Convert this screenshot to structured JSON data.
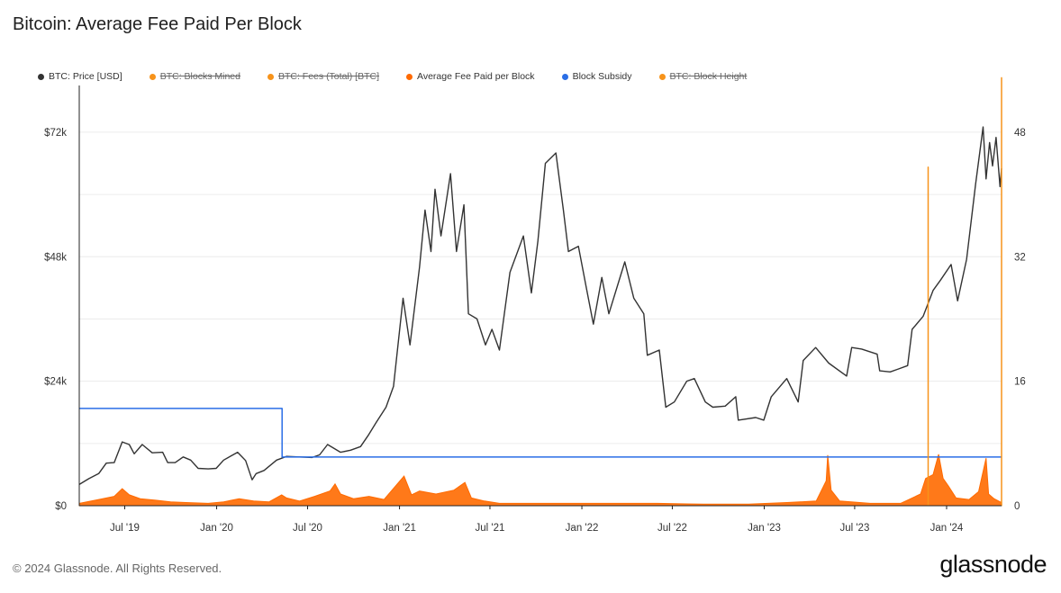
{
  "title": "Bitcoin: Average Fee Paid Per Block",
  "footer": {
    "copyright": "© 2024 Glassnode. All Rights Reserved.",
    "brand": "glassnode"
  },
  "legend": [
    {
      "label": "BTC: Price [USD]",
      "color": "#333333",
      "struck": false
    },
    {
      "label": "BTC: Blocks Mined",
      "color": "#f7931a",
      "struck": true
    },
    {
      "label": "BTC: Fees (Total) [BTC]",
      "color": "#f7931a",
      "struck": true
    },
    {
      "label": "Average Fee Paid per Block",
      "color": "#ff6a00",
      "struck": false
    },
    {
      "label": "Block Subsidy",
      "color": "#2a6ee6",
      "struck": false
    },
    {
      "label": "BTC: Block Height",
      "color": "#f7931a",
      "struck": true
    }
  ],
  "chart_data": {
    "type": "line",
    "x_range": [
      "2019-04-01",
      "2024-04-20"
    ],
    "left_axis": {
      "label": "",
      "ticks": [
        0,
        24000,
        48000,
        72000
      ],
      "tick_labels": [
        "$0",
        "$24k",
        "$48k",
        "$72k"
      ],
      "range": [
        0,
        81000
      ]
    },
    "right_axis": {
      "label": "",
      "ticks": [
        0,
        16,
        32,
        48
      ],
      "tick_labels": [
        "0",
        "16",
        "32",
        "48"
      ],
      "range": [
        0,
        54
      ]
    },
    "x_ticks": [
      {
        "date": "2019-07-01",
        "label": "Jul '19"
      },
      {
        "date": "2020-01-01",
        "label": "Jan '20"
      },
      {
        "date": "2020-07-01",
        "label": "Jul '20"
      },
      {
        "date": "2021-01-01",
        "label": "Jan '21"
      },
      {
        "date": "2021-07-01",
        "label": "Jul '21"
      },
      {
        "date": "2022-01-01",
        "label": "Jan '22"
      },
      {
        "date": "2022-07-01",
        "label": "Jul '22"
      },
      {
        "date": "2023-01-01",
        "label": "Jan '23"
      },
      {
        "date": "2023-07-01",
        "label": "Jul '23"
      },
      {
        "date": "2024-01-01",
        "label": "Jan '24"
      }
    ],
    "grid": true,
    "legend_position": "top-left",
    "series": [
      {
        "name": "BTC: Price [USD]",
        "axis": "left",
        "color": "#333333",
        "points": [
          [
            "2019-04-01",
            4100
          ],
          [
            "2019-04-20",
            5200
          ],
          [
            "2019-05-10",
            6200
          ],
          [
            "2019-05-25",
            8200
          ],
          [
            "2019-06-10",
            8300
          ],
          [
            "2019-06-26",
            12300
          ],
          [
            "2019-07-10",
            11800
          ],
          [
            "2019-07-20",
            10000
          ],
          [
            "2019-08-05",
            11800
          ],
          [
            "2019-08-25",
            10200
          ],
          [
            "2019-09-15",
            10300
          ],
          [
            "2019-09-25",
            8300
          ],
          [
            "2019-10-10",
            8300
          ],
          [
            "2019-10-26",
            9400
          ],
          [
            "2019-11-10",
            8800
          ],
          [
            "2019-11-25",
            7200
          ],
          [
            "2019-12-15",
            7100
          ],
          [
            "2019-12-31",
            7200
          ],
          [
            "2020-01-15",
            8800
          ],
          [
            "2020-02-12",
            10300
          ],
          [
            "2020-02-28",
            8700
          ],
          [
            "2020-03-12",
            5000
          ],
          [
            "2020-03-20",
            6200
          ],
          [
            "2020-04-05",
            6800
          ],
          [
            "2020-04-30",
            8800
          ],
          [
            "2020-05-20",
            9500
          ],
          [
            "2020-06-15",
            9400
          ],
          [
            "2020-07-10",
            9300
          ],
          [
            "2020-07-25",
            9800
          ],
          [
            "2020-08-10",
            11800
          ],
          [
            "2020-09-05",
            10300
          ],
          [
            "2020-09-25",
            10700
          ],
          [
            "2020-10-15",
            11400
          ],
          [
            "2020-10-30",
            13500
          ],
          [
            "2020-11-15",
            16000
          ],
          [
            "2020-12-05",
            19000
          ],
          [
            "2020-12-20",
            23000
          ],
          [
            "2021-01-08",
            40000
          ],
          [
            "2021-01-22",
            31000
          ],
          [
            "2021-02-10",
            46000
          ],
          [
            "2021-02-21",
            57000
          ],
          [
            "2021-03-05",
            49000
          ],
          [
            "2021-03-13",
            61000
          ],
          [
            "2021-03-25",
            52000
          ],
          [
            "2021-04-13",
            64000
          ],
          [
            "2021-04-25",
            49000
          ],
          [
            "2021-05-10",
            58000
          ],
          [
            "2021-05-19",
            37000
          ],
          [
            "2021-06-05",
            36000
          ],
          [
            "2021-06-22",
            31000
          ],
          [
            "2021-07-05",
            34000
          ],
          [
            "2021-07-20",
            30000
          ],
          [
            "2021-08-10",
            45000
          ],
          [
            "2021-09-06",
            52000
          ],
          [
            "2021-09-22",
            41000
          ],
          [
            "2021-10-05",
            51000
          ],
          [
            "2021-10-20",
            66000
          ],
          [
            "2021-11-10",
            68000
          ],
          [
            "2021-11-25",
            57000
          ],
          [
            "2021-12-05",
            49000
          ],
          [
            "2021-12-25",
            50000
          ],
          [
            "2022-01-10",
            42000
          ],
          [
            "2022-01-24",
            35000
          ],
          [
            "2022-02-10",
            44000
          ],
          [
            "2022-02-24",
            37000
          ],
          [
            "2022-03-28",
            47000
          ],
          [
            "2022-04-15",
            40000
          ],
          [
            "2022-05-05",
            37000
          ],
          [
            "2022-05-12",
            29000
          ],
          [
            "2022-06-05",
            30000
          ],
          [
            "2022-06-18",
            19000
          ],
          [
            "2022-07-05",
            20000
          ],
          [
            "2022-07-30",
            24000
          ],
          [
            "2022-08-14",
            24500
          ],
          [
            "2022-09-05",
            20000
          ],
          [
            "2022-09-20",
            19000
          ],
          [
            "2022-10-15",
            19200
          ],
          [
            "2022-11-05",
            21000
          ],
          [
            "2022-11-10",
            16500
          ],
          [
            "2022-12-15",
            17000
          ],
          [
            "2022-12-31",
            16500
          ],
          [
            "2023-01-15",
            21000
          ],
          [
            "2023-02-15",
            24500
          ],
          [
            "2023-03-10",
            20000
          ],
          [
            "2023-03-20",
            28000
          ],
          [
            "2023-04-14",
            30500
          ],
          [
            "2023-05-10",
            27500
          ],
          [
            "2023-06-15",
            25000
          ],
          [
            "2023-06-25",
            30500
          ],
          [
            "2023-07-15",
            30200
          ],
          [
            "2023-08-15",
            29200
          ],
          [
            "2023-08-20",
            26000
          ],
          [
            "2023-09-10",
            25800
          ],
          [
            "2023-09-25",
            26300
          ],
          [
            "2023-10-15",
            27000
          ],
          [
            "2023-10-24",
            34000
          ],
          [
            "2023-11-15",
            36500
          ],
          [
            "2023-12-05",
            41500
          ],
          [
            "2023-12-20",
            43500
          ],
          [
            "2024-01-10",
            46500
          ],
          [
            "2024-01-23",
            39500
          ],
          [
            "2024-02-10",
            47500
          ],
          [
            "2024-02-28",
            62000
          ],
          [
            "2024-03-14",
            73000
          ],
          [
            "2024-03-20",
            63000
          ],
          [
            "2024-03-27",
            70000
          ],
          [
            "2024-04-02",
            65500
          ],
          [
            "2024-04-09",
            71000
          ],
          [
            "2024-04-17",
            61500
          ],
          [
            "2024-04-20",
            65000
          ]
        ]
      },
      {
        "name": "Average Fee Paid per Block",
        "axis": "right",
        "color": "#ff6a00",
        "points": [
          [
            "2019-04-01",
            0.3
          ],
          [
            "2019-05-10",
            0.8
          ],
          [
            "2019-06-10",
            1.2
          ],
          [
            "2019-06-26",
            2.2
          ],
          [
            "2019-07-10",
            1.4
          ],
          [
            "2019-08-01",
            0.9
          ],
          [
            "2019-09-01",
            0.7
          ],
          [
            "2019-10-01",
            0.5
          ],
          [
            "2019-11-01",
            0.4
          ],
          [
            "2019-12-15",
            0.3
          ],
          [
            "2020-01-15",
            0.5
          ],
          [
            "2020-02-15",
            0.9
          ],
          [
            "2020-03-15",
            0.6
          ],
          [
            "2020-04-15",
            0.5
          ],
          [
            "2020-05-10",
            1.4
          ],
          [
            "2020-05-20",
            1.0
          ],
          [
            "2020-06-15",
            0.6
          ],
          [
            "2020-07-15",
            1.2
          ],
          [
            "2020-08-15",
            1.9
          ],
          [
            "2020-08-25",
            2.8
          ],
          [
            "2020-09-05",
            1.5
          ],
          [
            "2020-10-01",
            0.9
          ],
          [
            "2020-11-01",
            1.2
          ],
          [
            "2020-12-01",
            0.8
          ],
          [
            "2021-01-10",
            3.8
          ],
          [
            "2021-01-25",
            1.4
          ],
          [
            "2021-02-10",
            1.9
          ],
          [
            "2021-03-15",
            1.5
          ],
          [
            "2021-04-20",
            2.0
          ],
          [
            "2021-05-12",
            3.0
          ],
          [
            "2021-05-25",
            1.0
          ],
          [
            "2021-06-20",
            0.6
          ],
          [
            "2021-07-20",
            0.3
          ],
          [
            "2021-09-01",
            0.3
          ],
          [
            "2021-12-01",
            0.3
          ],
          [
            "2022-03-01",
            0.3
          ],
          [
            "2022-06-01",
            0.3
          ],
          [
            "2022-09-01",
            0.2
          ],
          [
            "2022-12-01",
            0.2
          ],
          [
            "2023-02-15",
            0.4
          ],
          [
            "2023-04-15",
            0.6
          ],
          [
            "2023-05-05",
            3.2
          ],
          [
            "2023-05-08",
            6.5
          ],
          [
            "2023-05-15",
            2.0
          ],
          [
            "2023-06-01",
            0.6
          ],
          [
            "2023-08-01",
            0.3
          ],
          [
            "2023-10-01",
            0.3
          ],
          [
            "2023-11-10",
            1.5
          ],
          [
            "2023-11-20",
            3.5
          ],
          [
            "2023-12-05",
            4.0
          ],
          [
            "2023-12-16",
            6.6
          ],
          [
            "2023-12-25",
            3.5
          ],
          [
            "2024-01-05",
            2.5
          ],
          [
            "2024-01-20",
            1.0
          ],
          [
            "2024-02-15",
            0.8
          ],
          [
            "2024-03-05",
            1.8
          ],
          [
            "2024-03-20",
            6.1
          ],
          [
            "2024-03-25",
            1.5
          ],
          [
            "2024-04-05",
            0.9
          ],
          [
            "2024-04-20",
            0.4
          ]
        ]
      },
      {
        "name": "Block Subsidy",
        "axis": "right",
        "color": "#2a6ee6",
        "points": [
          [
            "2019-04-01",
            12.5
          ],
          [
            "2020-05-11",
            12.5
          ],
          [
            "2020-05-11",
            6.25
          ],
          [
            "2024-04-20",
            6.25
          ]
        ]
      },
      {
        "name": "Spike",
        "axis": "right",
        "color": "#f7931a",
        "points": [
          [
            "2023-11-25",
            0
          ],
          [
            "2023-11-25",
            43.5
          ],
          [
            "2023-11-25",
            0
          ]
        ]
      },
      {
        "name": "Right edge line",
        "axis": "right",
        "color": "#f7931a",
        "points": [
          [
            "2024-04-20",
            0
          ],
          [
            "2024-04-20",
            55
          ],
          [
            "2024-04-20",
            0
          ]
        ]
      }
    ]
  }
}
